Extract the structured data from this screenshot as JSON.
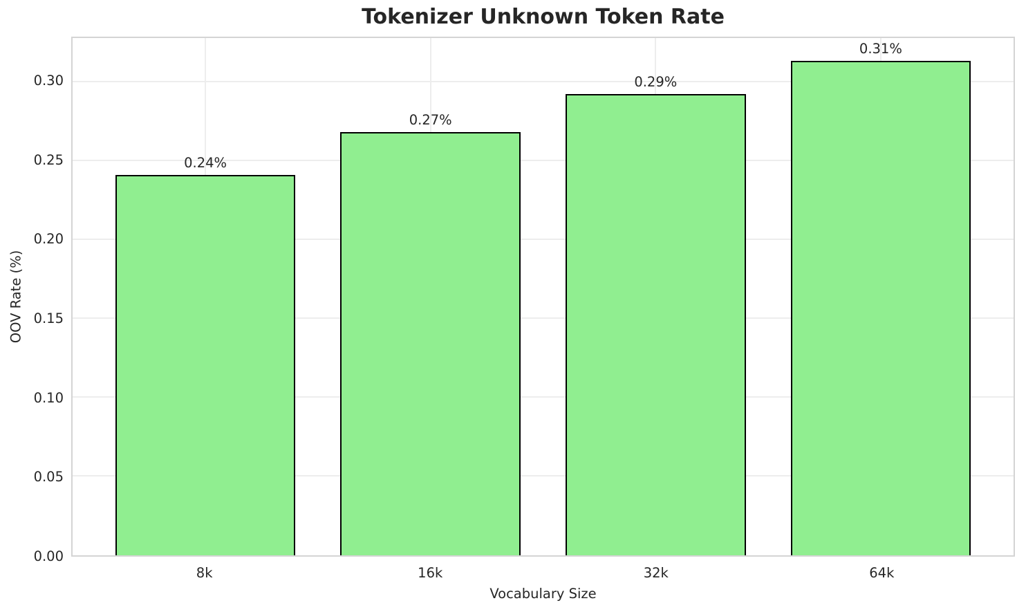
{
  "chart_data": {
    "type": "bar",
    "title": "Tokenizer Unknown Token Rate",
    "xlabel": "Vocabulary Size",
    "ylabel": "OOV Rate (%)",
    "categories": [
      "8k",
      "16k",
      "32k",
      "64k"
    ],
    "values": [
      0.24,
      0.267,
      0.291,
      0.312
    ],
    "bar_labels": [
      "0.24%",
      "0.27%",
      "0.29%",
      "0.31%"
    ],
    "ytick_values": [
      0.0,
      0.05,
      0.1,
      0.15,
      0.2,
      0.25,
      0.3
    ],
    "ytick_labels": [
      "0.00",
      "0.05",
      "0.10",
      "0.15",
      "0.20",
      "0.25",
      "0.30"
    ],
    "ylim": [
      0,
      0.328
    ],
    "grid": true,
    "legend_position": "none",
    "colors": {
      "bar_fill": "#90ee90",
      "bar_edge": "#000000",
      "grid": "#ededed",
      "spine": "#d4d4d4",
      "text": "#262626"
    }
  }
}
